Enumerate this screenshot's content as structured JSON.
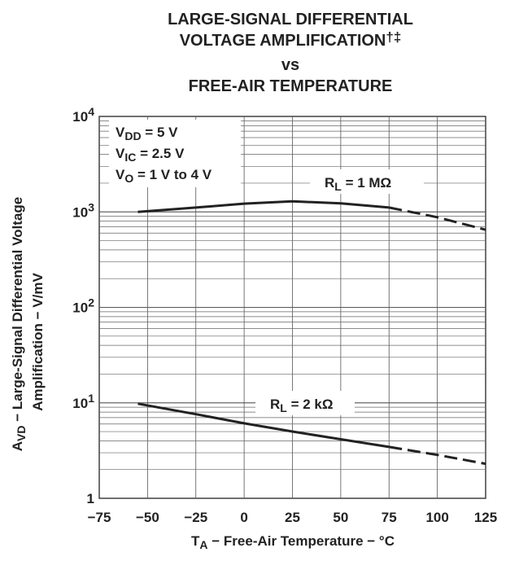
{
  "chart_data": {
    "type": "line",
    "title": [
      "LARGE-SIGNAL DIFFERENTIAL",
      "VOLTAGE AMPLIFICATION",
      "vs",
      "FREE-AIR TEMPERATURE"
    ],
    "title_mark": "†‡",
    "xlabel": {
      "main": "T",
      "sub": "A",
      "rest": " − Free-Air Temperature − °C"
    },
    "ylabel": {
      "main": "A",
      "sub": "VD",
      "rest1": " − Large-Signal Differential Voltage",
      "line2": "Amplification − V/mV"
    },
    "x_scale": "linear",
    "y_scale": "log",
    "xlim": [
      -75,
      125
    ],
    "ylim": [
      1,
      10000
    ],
    "grid": true,
    "x_ticks": [
      -75,
      -50,
      -25,
      0,
      25,
      50,
      75,
      100,
      125
    ],
    "x_tick_labels": [
      "−75",
      "−50",
      "−25",
      "0",
      "25",
      "50",
      "75",
      "100",
      "125"
    ],
    "y_ticks": [
      {
        "value": 1,
        "base": "1",
        "exp": ""
      },
      {
        "value": 10,
        "base": "10",
        "exp": "1"
      },
      {
        "value": 100,
        "base": "10",
        "exp": "2"
      },
      {
        "value": 1000,
        "base": "10",
        "exp": "3"
      },
      {
        "value": 10000,
        "base": "10",
        "exp": "4"
      }
    ],
    "conditions": [
      {
        "main": "V",
        "sub": "DD",
        "rest": " = 5 V"
      },
      {
        "main": "V",
        "sub": "IC",
        "rest": " = 2.5 V"
      },
      {
        "main": "V",
        "sub": "O",
        "rest": " = 1 V to 4 V"
      }
    ],
    "series": [
      {
        "label": {
          "main": "R",
          "sub": "L",
          "rest": " = 1 MΩ"
        },
        "solid": [
          [
            -55,
            1000
          ],
          [
            -25,
            1110
          ],
          [
            0,
            1220
          ],
          [
            25,
            1290
          ],
          [
            50,
            1230
          ],
          [
            75,
            1110
          ]
        ],
        "dashed": [
          [
            75,
            1110
          ],
          [
            100,
            880
          ],
          [
            125,
            650
          ]
        ]
      },
      {
        "label": {
          "main": "R",
          "sub": "L",
          "rest": " = 2 kΩ"
        },
        "solid": [
          [
            -55,
            9.8
          ],
          [
            -25,
            7.6
          ],
          [
            0,
            6.1
          ],
          [
            25,
            5.0
          ],
          [
            50,
            4.15
          ],
          [
            75,
            3.45
          ]
        ],
        "dashed": [
          [
            75,
            3.45
          ],
          [
            100,
            2.85
          ],
          [
            125,
            2.3
          ]
        ]
      }
    ]
  }
}
